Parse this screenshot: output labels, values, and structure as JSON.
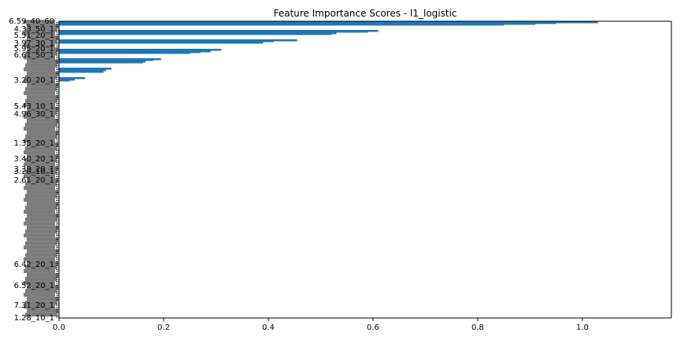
{
  "chart_data": {
    "type": "bar",
    "orientation": "horizontal",
    "title": "Feature Importance Scores - l1_logistic",
    "xlabel": "",
    "ylabel": "",
    "xlim": [
      0,
      1.17
    ],
    "x_ticks": [
      "0.0",
      "0.2",
      "0.4",
      "0.6",
      "0.8",
      "1.0"
    ],
    "bar_color": "#1f77b4",
    "grid": false,
    "legend": "none",
    "categories": [
      "6.59_40_60",
      "4.33_50_1",
      "5.51_20_1",
      "3.97_30_1",
      "5.95_20_1",
      "6.61_50_1",
      "3.20_20_1",
      "5.43_10_1",
      "4.96_30_1",
      "1.35_20_1",
      "3.40_20_1",
      "3.30_20_1",
      "3.20_10_1",
      "2.61_20_1",
      "6.42_20_1",
      "6.52_20_1",
      "7.31_20_1",
      "1.28_10_1"
    ],
    "values": [
      1.03,
      0.61,
      0.455,
      0.31,
      0.195,
      0.1,
      0.05,
      0.0,
      0.0,
      0.0,
      0.0,
      0.0,
      0.0,
      0.0,
      0.0,
      0.0,
      0.0,
      0.0
    ],
    "tick_count": 150
  }
}
